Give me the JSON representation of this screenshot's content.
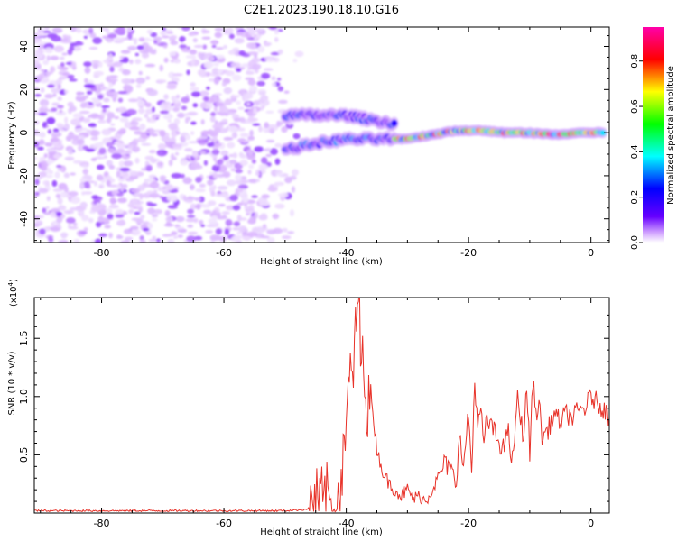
{
  "title": "C2E1.2023.190.18.10.G16",
  "chart_data": [
    {
      "type": "heatmap",
      "xlabel": "Height of straight line (km)",
      "ylabel": "Frequency (Hz)",
      "xlim": [
        -91,
        3
      ],
      "ylim": [
        -51,
        49
      ],
      "x_ticks": [
        -80,
        -60,
        -40,
        -20,
        0
      ],
      "y_ticks": [
        -40,
        -20,
        0,
        20,
        40
      ],
      "colorbar": {
        "label": "Normalized spectral amplitude",
        "range": [
          0,
          0.95
        ],
        "ticks": [
          0.0,
          0.2,
          0.4,
          0.6,
          0.8
        ],
        "colormap": [
          "#ffffff",
          "#cc99ff",
          "#6600ff",
          "#0000ff",
          "#00ffff",
          "#00ff00",
          "#ffff00",
          "#ff0000",
          "#ff00aa"
        ]
      },
      "features": [
        {
          "region": "noise",
          "x_range": [
            -91,
            -50
          ],
          "y_range": [
            -51,
            49
          ],
          "amplitude": 0.15
        },
        {
          "region": "split_upper",
          "x": [
            -50,
            -45,
            -40,
            -36,
            -32
          ],
          "y": [
            8,
            8,
            8,
            6,
            4
          ],
          "amplitude": 0.4
        },
        {
          "region": "split_lower",
          "x": [
            -50,
            -45,
            -40,
            -36,
            -32
          ],
          "y": [
            -8,
            -5,
            -3,
            -3,
            -3
          ],
          "amplitude": 0.45
        },
        {
          "region": "merged_line",
          "x": [
            -32,
            -30,
            -26,
            -22,
            -18,
            -14,
            -10,
            -6,
            -2,
            2
          ],
          "y": [
            -3,
            -3,
            -1,
            1,
            1,
            0,
            0,
            -1,
            0,
            0
          ],
          "amplitude": 0.85
        }
      ]
    },
    {
      "type": "line",
      "xlabel": "Height of straight line (km)",
      "ylabel": "SNR (10 * v/v)",
      "multiplier_label": "(x10",
      "multiplier_exp": "4",
      "xlim": [
        -91,
        3
      ],
      "ylim": [
        0,
        1.85
      ],
      "x_ticks": [
        -80,
        -60,
        -40,
        -20,
        0
      ],
      "y_ticks": [
        0.5,
        1.0,
        1.5
      ],
      "y_tick_labels": [
        "0.5",
        "1.0",
        "1.5"
      ],
      "series": [
        {
          "color": "#e8332a",
          "x": [
            -91,
            -85,
            -80,
            -75,
            -70,
            -65,
            -60,
            -55,
            -50,
            -47,
            -45,
            -43,
            -42,
            -41,
            -40,
            -39.5,
            -39,
            -38.5,
            -38,
            -37.5,
            -37,
            -36.5,
            -36,
            -35,
            -34,
            -33,
            -32,
            -31,
            -30,
            -29,
            -28,
            -27,
            -26,
            -25,
            -24,
            -23,
            -22,
            -21.5,
            -21,
            -20,
            -19.5,
            -19,
            -18.5,
            -18,
            -17.5,
            -17,
            -16,
            -15,
            -14,
            -13.5,
            -13,
            -12,
            -11,
            -10.5,
            -10,
            -9.5,
            -9,
            -8.5,
            -8,
            -7,
            -6,
            -5,
            -4,
            -3,
            -2,
            -1,
            0,
            1,
            2,
            3
          ],
          "y": [
            0.02,
            0.02,
            0.02,
            0.02,
            0.02,
            0.02,
            0.02,
            0.02,
            0.02,
            0.03,
            0.05,
            0.1,
            0.15,
            0.2,
            0.6,
            1.35,
            0.9,
            1.65,
            1.85,
            1.2,
            1.35,
            0.85,
            1.05,
            0.55,
            0.35,
            0.25,
            0.2,
            0.15,
            0.2,
            0.12,
            0.15,
            0.1,
            0.2,
            0.3,
            0.42,
            0.38,
            0.25,
            0.75,
            0.35,
            0.85,
            0.35,
            1.15,
            0.75,
            0.85,
            0.62,
            0.8,
            0.72,
            0.6,
            0.55,
            0.8,
            0.35,
            0.98,
            0.65,
            1.1,
            0.5,
            1.15,
            0.85,
            0.95,
            0.65,
            0.72,
            0.85,
            0.78,
            0.85,
            0.82,
            0.88,
            0.9,
            1.0,
            0.95,
            0.9,
            0.82
          ]
        }
      ]
    }
  ]
}
